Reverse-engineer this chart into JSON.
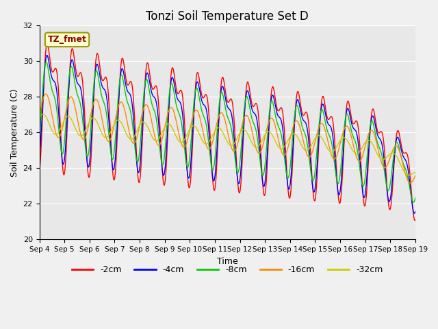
{
  "title": "Tonzi Soil Temperature Set D",
  "xlabel": "Time",
  "ylabel": "Soil Temperature (C)",
  "ylim": [
    20,
    32
  ],
  "yticks": [
    20,
    22,
    24,
    26,
    28,
    30,
    32
  ],
  "xtick_labels": [
    "Sep 4",
    "Sep 5",
    "Sep 6",
    "Sep 7",
    "Sep 8",
    "Sep 9",
    "Sep 10",
    "Sep 11",
    "Sep 12",
    "Sep 13",
    "Sep 14",
    "Sep 15",
    "Sep 16",
    "Sep 17",
    "Sep 18",
    "Sep 19"
  ],
  "legend_labels": [
    "-2cm",
    "-4cm",
    "-8cm",
    "-16cm",
    "-32cm"
  ],
  "line_colors": [
    "#ff0000",
    "#0000ff",
    "#00cc00",
    "#ff8800",
    "#cccc00"
  ],
  "annotation_text": "TZ_fmet",
  "annotation_bg": "#ffffcc",
  "annotation_border": "#999900",
  "n_points": 720,
  "title_fontsize": 12,
  "axis_fontsize": 9,
  "legend_fontsize": 9,
  "fig_bg": "#f0f0f0",
  "ax_bg": "#e8e8e8"
}
